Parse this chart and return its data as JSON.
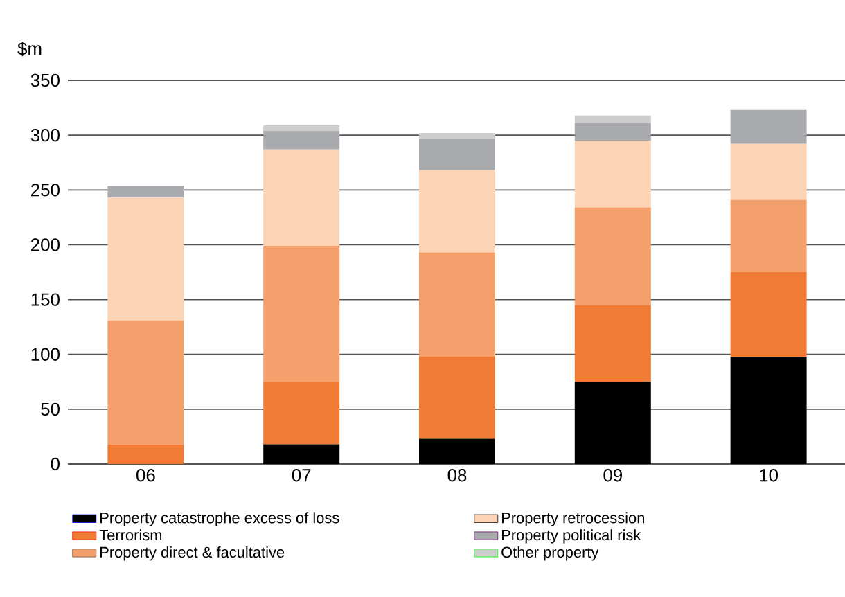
{
  "chart_data": {
    "type": "bar",
    "stacked": true,
    "ylabel": "$m",
    "categories": [
      "06",
      "07",
      "08",
      "09",
      "10"
    ],
    "series": [
      {
        "name": "Property catastrophe excess of loss",
        "color": "#000000",
        "values": [
          0,
          18,
          23,
          75,
          98
        ]
      },
      {
        "name": "Terrorism",
        "color": "#ef7b35",
        "values": [
          18,
          57,
          75,
          70,
          77
        ]
      },
      {
        "name": "Property direct & facultative",
        "color": "#f4a06d",
        "values": [
          113,
          124,
          95,
          89,
          66
        ]
      },
      {
        "name": "Property retrocession",
        "color": "#fbd3b5",
        "values": [
          112,
          88,
          75,
          61,
          51
        ]
      },
      {
        "name": "Property political risk",
        "color": "#a9aaad",
        "values": [
          11,
          17,
          29,
          16,
          31
        ]
      },
      {
        "name": "Other property",
        "color": "#cdcdcd",
        "values": [
          0,
          5,
          5,
          7,
          0
        ]
      }
    ],
    "ylim": [
      0,
      350
    ],
    "yticks": [
      0,
      50,
      100,
      150,
      200,
      250,
      300,
      350
    ],
    "grid": "y",
    "legend": "bottom"
  }
}
